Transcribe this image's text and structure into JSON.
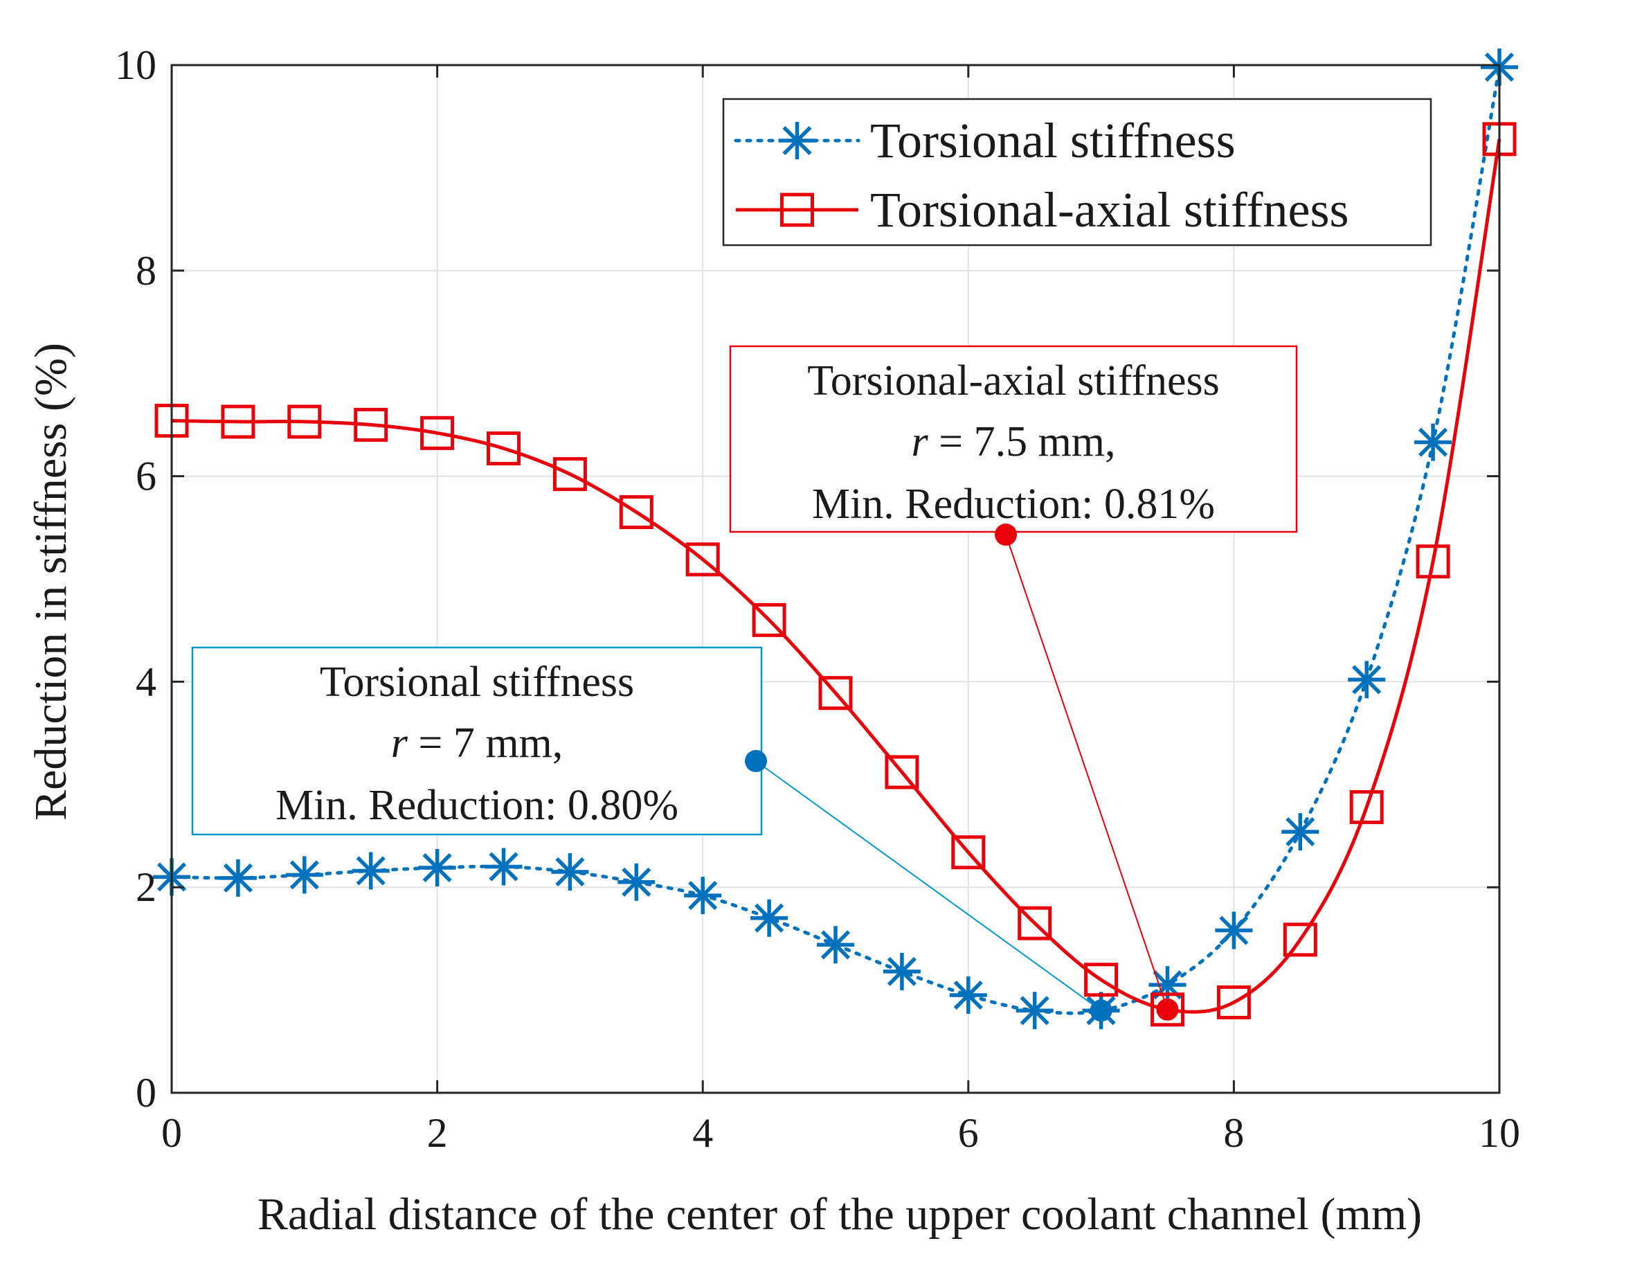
{
  "chart_data": {
    "type": "line",
    "title": "",
    "xlabel": "Radial distance of the center of the upper coolant channel (mm)",
    "ylabel": "Reduction in stiffness (%)",
    "xlim": [
      0,
      10
    ],
    "ylim": [
      0,
      10
    ],
    "xticks": [
      "0",
      "2",
      "4",
      "6",
      "8",
      "10"
    ],
    "yticks": [
      "0",
      "2",
      "4",
      "6",
      "8",
      "10"
    ],
    "grid": true,
    "legend_position": "top-right",
    "x": [
      0,
      0.5,
      1,
      1.5,
      2,
      2.5,
      3,
      3.5,
      4,
      4.5,
      5,
      5.5,
      6,
      6.5,
      7,
      7.5,
      8,
      8.5,
      9,
      9.5,
      10
    ],
    "series": [
      {
        "name": "Torsional stiffness",
        "color": "#0072BD",
        "line_style": "dotted",
        "marker": "asterisk",
        "values": [
          2.1,
          2.09,
          2.12,
          2.16,
          2.19,
          2.2,
          2.15,
          2.05,
          1.92,
          1.7,
          1.44,
          1.18,
          0.95,
          0.8,
          0.8,
          1.05,
          1.58,
          2.54,
          4.02,
          6.33,
          9.98
        ]
      },
      {
        "name": "Torsional-axial stiffness",
        "color": "#E8000B",
        "line_style": "solid",
        "marker": "square",
        "values": [
          6.54,
          6.53,
          6.53,
          6.5,
          6.42,
          6.27,
          6.02,
          5.65,
          5.19,
          4.6,
          3.89,
          3.12,
          2.34,
          1.65,
          1.1,
          0.81,
          0.88,
          1.49,
          2.78,
          5.17,
          9.28
        ]
      }
    ],
    "annotations": [
      {
        "series": "Torsional stiffness",
        "color": "#0099CC",
        "point_color": "#0072BD",
        "title": "Torsional stiffness",
        "r_label": "r",
        "r_rest": " = 7 mm,",
        "min_text": "Min. Reduction: 0.80%",
        "x": 7,
        "y": 0.8
      },
      {
        "series": "Torsional-axial stiffness",
        "color": "#E8000B",
        "point_color": "#E8000B",
        "title": "Torsional-axial stiffness",
        "r_label": "r",
        "r_rest": " = 7.5 mm,",
        "min_text": "Min. Reduction: 0.81%",
        "x": 7.5,
        "y": 0.81
      }
    ]
  }
}
